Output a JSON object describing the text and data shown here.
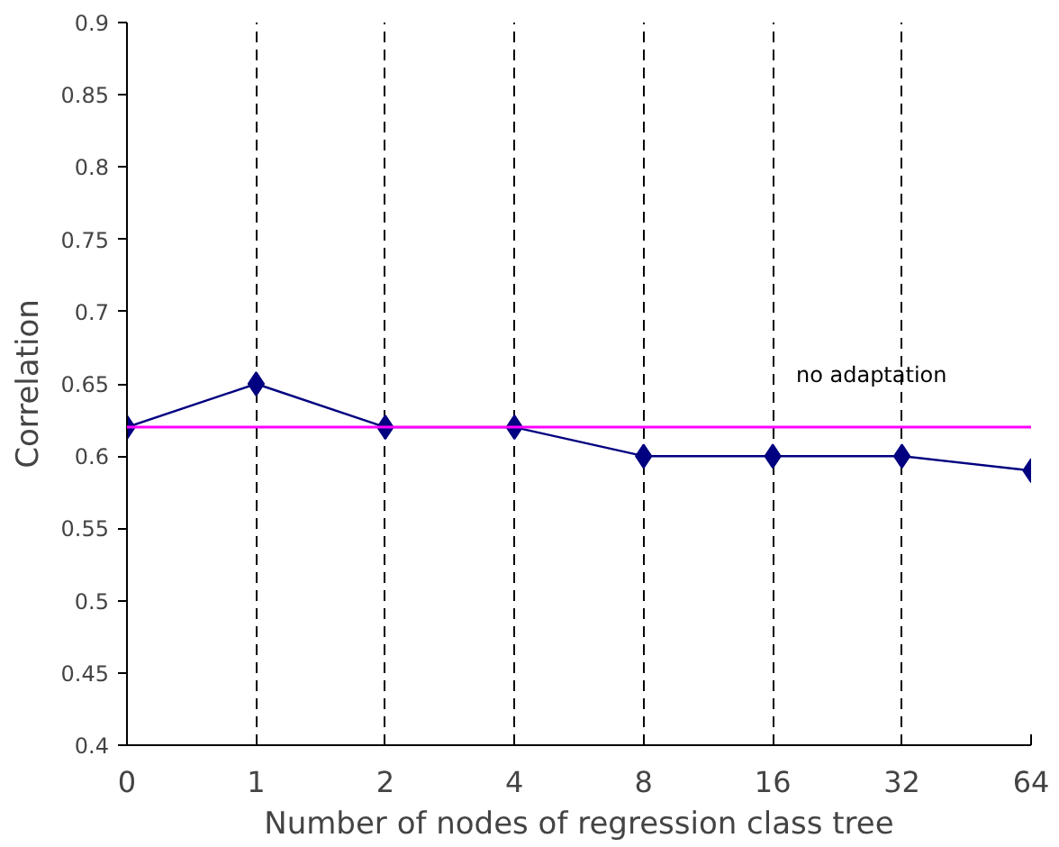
{
  "chart_data": {
    "type": "line",
    "xlabel": "Number of nodes of regression class tree",
    "ylabel": "Correlation",
    "categories": [
      "0",
      "1",
      "2",
      "4",
      "8",
      "16",
      "32",
      "64"
    ],
    "series": [
      {
        "color": "#000080",
        "values": [
          0.62,
          0.65,
          0.62,
          0.62,
          0.6,
          0.6,
          0.6,
          0.59
        ]
      }
    ],
    "ylim": [
      0.4,
      0.9
    ],
    "yticks": [
      0.4,
      0.45,
      0.5,
      0.55,
      0.6,
      0.65,
      0.7,
      0.75,
      0.8,
      0.85,
      0.9
    ],
    "ref_lines": [
      {
        "axis": "y",
        "value": 0.62,
        "label": "no adaptation",
        "color": "#ff00ff"
      }
    ],
    "grid": "x",
    "marker": "diamond",
    "line_style": "solid"
  }
}
